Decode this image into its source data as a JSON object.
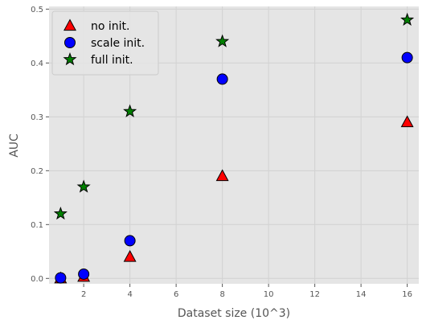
{
  "chart_data": {
    "type": "scatter",
    "title": "",
    "xlabel": "Dataset size (10^3)",
    "ylabel": "AUC",
    "xlim": [
      0.5,
      16.5
    ],
    "ylim": [
      -0.01,
      0.505
    ],
    "xticks": [
      2,
      4,
      6,
      8,
      10,
      12,
      14,
      16
    ],
    "yticks": [
      0.0,
      0.1,
      0.2,
      0.3,
      0.4,
      0.5
    ],
    "grid": true,
    "legend_position": "top-left",
    "series": [
      {
        "name": "no init.",
        "marker": "triangle",
        "color": "#ff0000",
        "x": [
          1,
          2,
          4,
          8,
          16
        ],
        "y": [
          0.0,
          0.003,
          0.04,
          0.19,
          0.29
        ]
      },
      {
        "name": "scale init.",
        "marker": "circle",
        "color": "#0000ff",
        "x": [
          1,
          2,
          4,
          8,
          16
        ],
        "y": [
          0.001,
          0.008,
          0.07,
          0.37,
          0.41
        ]
      },
      {
        "name": "full init.",
        "marker": "star",
        "color": "#008000",
        "x": [
          1,
          2,
          4,
          8,
          16
        ],
        "y": [
          0.12,
          0.17,
          0.31,
          0.44,
          0.48
        ]
      }
    ]
  }
}
